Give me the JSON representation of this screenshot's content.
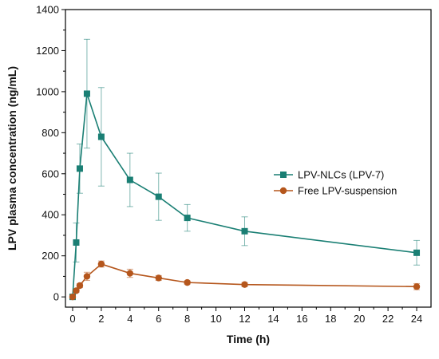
{
  "chart_data": {
    "type": "line",
    "title": "",
    "xlabel": "Time (h)",
    "ylabel": "LPV plasma concentration (ng/mL)",
    "xlim": [
      -0.5,
      25
    ],
    "ylim": [
      -50,
      1400
    ],
    "xticks": [
      0,
      2,
      4,
      6,
      8,
      10,
      12,
      14,
      16,
      18,
      20,
      22,
      24
    ],
    "yticks": [
      0,
      200,
      400,
      600,
      800,
      1000,
      1200,
      1400
    ],
    "grid": false,
    "legend_position": "right",
    "series": [
      {
        "name": "LPV-NLCs (LPV-7)",
        "color": "#1a7f74",
        "marker": "square",
        "x": [
          0,
          0.25,
          0.5,
          1,
          2,
          4,
          6,
          8,
          12,
          24
        ],
        "y": [
          0,
          265,
          625,
          990,
          780,
          570,
          488,
          385,
          320,
          215
        ],
        "err": [
          0,
          95,
          120,
          265,
          240,
          130,
          115,
          65,
          70,
          60
        ]
      },
      {
        "name": "Free LPV-suspension",
        "color": "#b5561c",
        "marker": "circle",
        "x": [
          0,
          0.25,
          0.5,
          1,
          2,
          4,
          6,
          8,
          12,
          24
        ],
        "y": [
          0,
          30,
          55,
          100,
          160,
          115,
          92,
          70,
          60,
          50
        ],
        "err": [
          0,
          8,
          10,
          20,
          15,
          20,
          12,
          8,
          10,
          15
        ]
      }
    ]
  }
}
